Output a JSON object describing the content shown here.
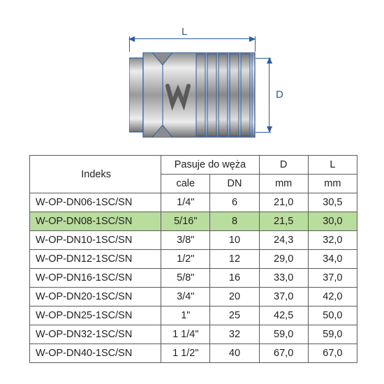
{
  "diagram": {
    "label_L": "L",
    "label_D": "D",
    "stroke_color": "#2a5caa",
    "body_fill": "#b5b5b5",
    "body_shade": "#8d8d8d",
    "body_light": "#d8d8d8"
  },
  "table": {
    "headers": {
      "index": "Indeks",
      "fits": "Pasuje do węża",
      "D": "D",
      "L": "L",
      "cale": "cale",
      "DN": "DN",
      "mm1": "mm",
      "mm2": "mm"
    },
    "highlight_row": 1,
    "highlight_color": "#b8dd9c",
    "rows": [
      {
        "idx": "W-OP-DN06-1SC/SN",
        "cale": "1/4\"",
        "dn": "6",
        "d": "21,0",
        "l": "30,5"
      },
      {
        "idx": "W-OP-DN08-1SC/SN",
        "cale": "5/16\"",
        "dn": "8",
        "d": "21,5",
        "l": "30,0"
      },
      {
        "idx": "W-OP-DN10-1SC/SN",
        "cale": "3/8\"",
        "dn": "10",
        "d": "24,3",
        "l": "32,0"
      },
      {
        "idx": "W-OP-DN12-1SC/SN",
        "cale": "1/2\"",
        "dn": "12",
        "d": "29,0",
        "l": "34,0"
      },
      {
        "idx": "W-OP-DN16-1SC/SN",
        "cale": "5/8\"",
        "dn": "16",
        "d": "33,0",
        "l": "37,0"
      },
      {
        "idx": "W-OP-DN20-1SC/SN",
        "cale": "3/4\"",
        "dn": "20",
        "d": "37,0",
        "l": "42,0"
      },
      {
        "idx": "W-OP-DN25-1SC/SN",
        "cale": "1\"",
        "dn": "25",
        "d": "42,5",
        "l": "50,0"
      },
      {
        "idx": "W-OP-DN32-1SC/SN",
        "cale": "1 1/4\"",
        "dn": "32",
        "d": "59,0",
        "l": "59,0"
      },
      {
        "idx": "W-OP-DN40-1SC/SN",
        "cale": "1 1/2\"",
        "dn": "40",
        "d": "67,0",
        "l": "67,0"
      }
    ]
  }
}
